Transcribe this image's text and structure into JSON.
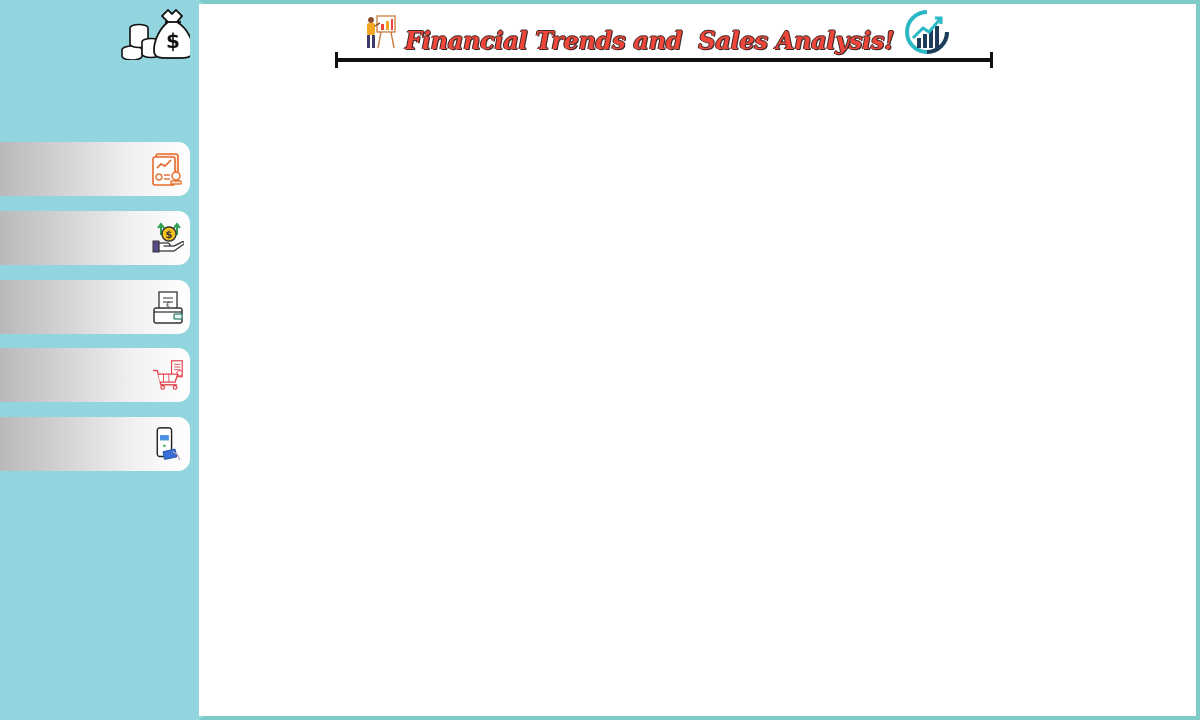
{
  "header": {
    "title": "Financial Trends and  Sales Analysis!"
  },
  "sidebar": {
    "logo_icon": "money-bag-coins-icon",
    "buttons": [
      {
        "icon": "financial-report-icon"
      },
      {
        "icon": "hand-dollar-growth-icon"
      },
      {
        "icon": "wallet-receipt-icon"
      },
      {
        "icon": "shopping-cart-invoice-icon"
      },
      {
        "icon": "mobile-card-payment-icon"
      }
    ]
  },
  "colors": {
    "frame": "#7ecbc9",
    "sidebar": "#93d5df",
    "canvas": "#ffffff",
    "title_red": "#f0463a",
    "title_outline": "#3b2a2a",
    "rule": "#111111"
  }
}
